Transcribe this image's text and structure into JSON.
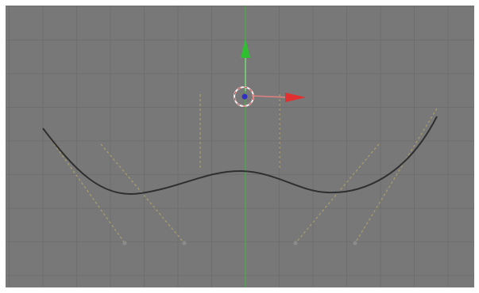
{
  "viewport": {
    "background": "#787878",
    "grid_color": "#6e6e6e",
    "y_axis_color": "#55a055"
  },
  "object": {
    "type": "bezier-curve",
    "curve_color": "#2f2f2f",
    "handle_color": "#b0a46a",
    "handle_point_color": "#8c8c8c"
  },
  "gizmo": {
    "x_handle_color": "#e03030",
    "y_handle_color": "#2fc02f",
    "z_center_color": "#3030c0",
    "ring_color": "#f0f0f0",
    "icons": [
      "move-x-arrow-icon",
      "move-y-arrow-icon",
      "3d-cursor-icon"
    ]
  }
}
